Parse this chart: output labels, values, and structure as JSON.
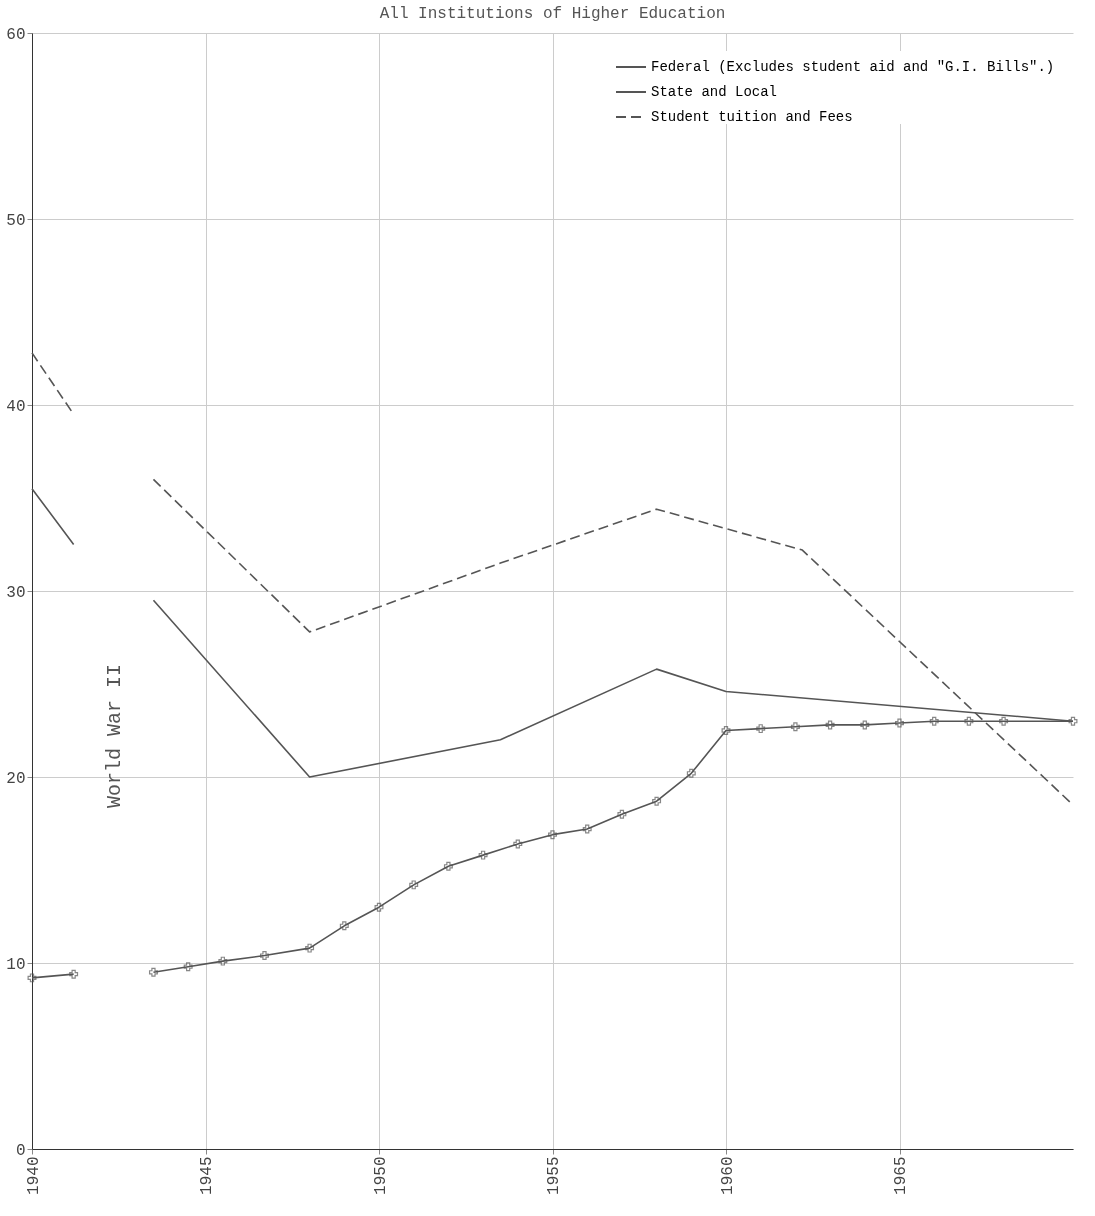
{
  "chart_data": {
    "type": "line",
    "title": "All Institutions of Higher Education",
    "xlim": [
      1940,
      1970
    ],
    "xticks": [
      1940,
      1945,
      1950,
      1955,
      1960,
      1965
    ],
    "ylim": [
      0,
      60
    ],
    "yticks": [
      0,
      10,
      20,
      30,
      40,
      50,
      60
    ],
    "grid": true,
    "legend": "top right",
    "annotations": [
      "World War II"
    ],
    "series": [
      {
        "name": "Federal (Excludes student aid and \"G.I. Bills\".)",
        "color": "#555555",
        "line_style": "solid",
        "marker": "cross",
        "x": [
          1940,
          1941.2,
          1942,
          1943.5,
          1944.5,
          1945.5,
          1946.7,
          1948,
          1949,
          1950,
          1951,
          1952,
          1953,
          1954,
          1955,
          1956,
          1957,
          1958,
          1959,
          1960,
          1961,
          1962,
          1963,
          1964,
          1965,
          1966,
          1967,
          1968,
          1970
        ],
        "values": [
          9.2,
          9.4,
          null,
          9.5,
          9.8,
          10.1,
          10.4,
          10.8,
          12,
          13,
          14.2,
          15.2,
          15.8,
          16.4,
          16.9,
          17.2,
          18,
          18.7,
          20.2,
          22.5,
          22.6,
          22.7,
          22.8,
          22.8,
          22.9,
          23,
          23,
          23,
          23
        ]
      },
      {
        "name": "State and Local",
        "color": "#555555",
        "line_style": "solid",
        "x": [
          1940,
          1941.2,
          1942,
          1943.5,
          1948,
          1953.5,
          1958,
          1960,
          1970
        ],
        "values": [
          35.5,
          32.5,
          null,
          29.5,
          20,
          22,
          25.8,
          24.6,
          23
        ]
      },
      {
        "name": "Student tuition and Fees",
        "color": "#555555",
        "line_style": "dashed",
        "x": [
          1940,
          1941.2,
          1942,
          1943.5,
          1948,
          1953.5,
          1958,
          1962.2,
          1970
        ],
        "values": [
          42.8,
          39.5,
          null,
          36,
          27.8,
          31.5,
          34.4,
          32.2,
          18.5
        ]
      }
    ]
  }
}
